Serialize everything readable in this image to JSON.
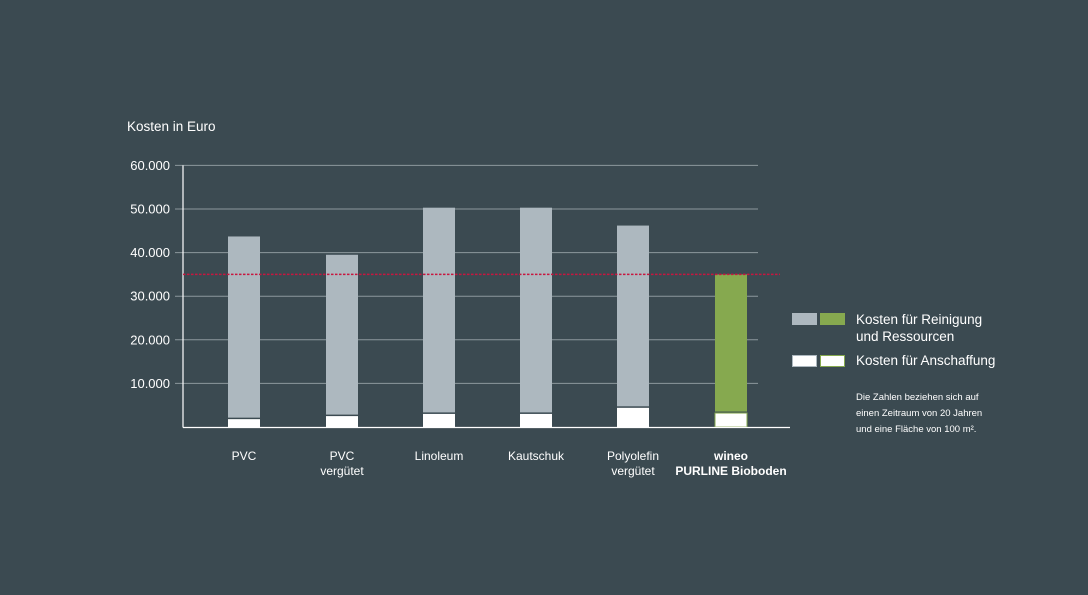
{
  "chart_data": {
    "type": "bar",
    "stacked": true,
    "ylabel": "Kosten in Euro",
    "ylim": [
      0,
      60000
    ],
    "yticks": [
      10000,
      20000,
      30000,
      40000,
      50000,
      60000
    ],
    "ytick_labels": [
      "10.000",
      "20.000",
      "30.000",
      "40.000",
      "50.000",
      "60.000"
    ],
    "grid": true,
    "categories": [
      {
        "line1": "PVC",
        "line2": "",
        "bold": false
      },
      {
        "line1": "PVC",
        "line2": "vergütet",
        "bold": false
      },
      {
        "line1": "Linoleum",
        "line2": "",
        "bold": false
      },
      {
        "line1": "Kautschuk",
        "line2": "",
        "bold": false
      },
      {
        "line1": "Polyolefin",
        "line2": "vergütet",
        "bold": false
      },
      {
        "line1": "wineo",
        "line2": "PURLINE Bioboden",
        "bold": true
      }
    ],
    "series": [
      {
        "name": "Kosten für Anschaffung",
        "values": [
          1800,
          2500,
          3000,
          3000,
          4400,
          3200
        ]
      },
      {
        "name": "Kosten für Reinigung und Ressourcen",
        "values": [
          41900,
          37000,
          47300,
          47300,
          41800,
          31800
        ]
      }
    ],
    "reference_line": {
      "value": 35000,
      "color": "#c8163f",
      "style": "dashed"
    },
    "colors": {
      "other": "#adb8bf",
      "highlight": "#86a94f",
      "purchase": "#ffffff",
      "grid": "#8c989d",
      "background": "#3b4a51"
    },
    "highlight_index": 5,
    "legend": {
      "placement": "right",
      "entries": [
        {
          "line1": "Kosten für Reinigung",
          "line2": "und Ressourcen"
        },
        {
          "line1": "Kosten für Anschaffung",
          "line2": ""
        }
      ]
    },
    "note": [
      "Die Zahlen beziehen sich auf",
      "einen Zeitraum von 20 Jahren",
      "und eine Fläche von 100 m²."
    ]
  }
}
